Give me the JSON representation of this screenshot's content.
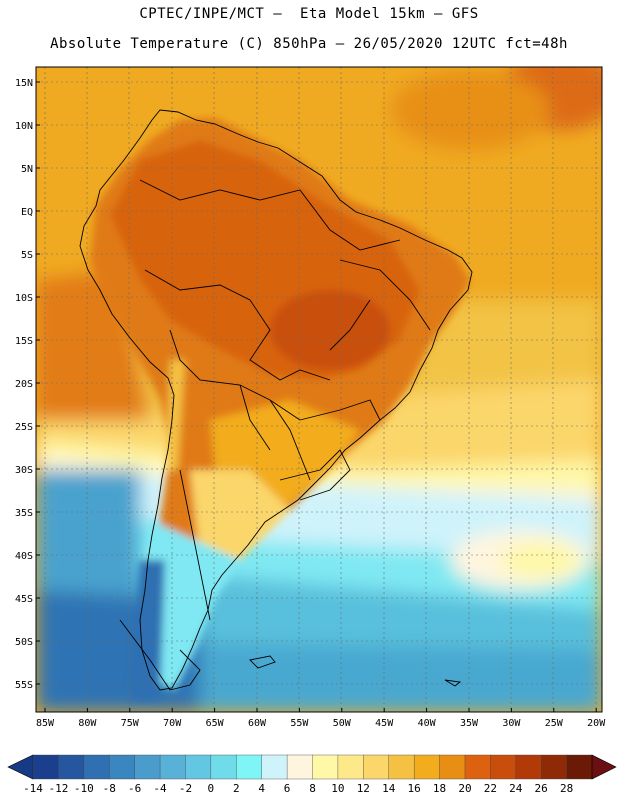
{
  "header": {
    "line1": "CPTEC/INPE/MCT –  Eta Model 15km – GFS",
    "line2": "Absolute Temperature (C) 850hPa – 26/05/2020 12UTC fct=48h"
  },
  "axes": {
    "lat_labels": [
      "15N",
      "10N",
      "5N",
      "EQ",
      "5S",
      "10S",
      "15S",
      "20S",
      "25S",
      "30S",
      "35S",
      "40S",
      "45S",
      "50S",
      "55S"
    ],
    "lon_labels": [
      "85W",
      "80W",
      "75W",
      "70W",
      "65W",
      "60W",
      "55W",
      "50W",
      "45W",
      "40W",
      "35W",
      "30W",
      "25W",
      "20W"
    ]
  },
  "colorbar": {
    "labels": [
      "-14",
      "-12",
      "-10",
      "-8",
      "-6",
      "-4",
      "-2",
      "0",
      "2",
      "4",
      "6",
      "8",
      "10",
      "12",
      "14",
      "16",
      "18",
      "20",
      "22",
      "24",
      "26",
      "28"
    ],
    "colors": [
      "#1a3f8c",
      "#2557a0",
      "#2f6fb2",
      "#3a86c0",
      "#4a9ccc",
      "#58b2d8",
      "#63c6e2",
      "#70dcea",
      "#7ff5f7",
      "#cff3fb",
      "#fff5df",
      "#fef8a7",
      "#fde98a",
      "#fbd66b",
      "#f5c143",
      "#f2ac1e",
      "#e88e13",
      "#dd6210",
      "#c94d0b",
      "#b23a08",
      "#8f2a06",
      "#6a1a05"
    ],
    "under_color": "#173a85",
    "over_color": "#6a0f12"
  },
  "map": {
    "ocean_north_color": "#f0a820",
    "ocean_south_color": "#56c0dc",
    "amazon_color": "#d86410",
    "andes_cold_color": "#2f6fb2",
    "border_color": "#000000",
    "grid_color": "#6a6a6a"
  }
}
